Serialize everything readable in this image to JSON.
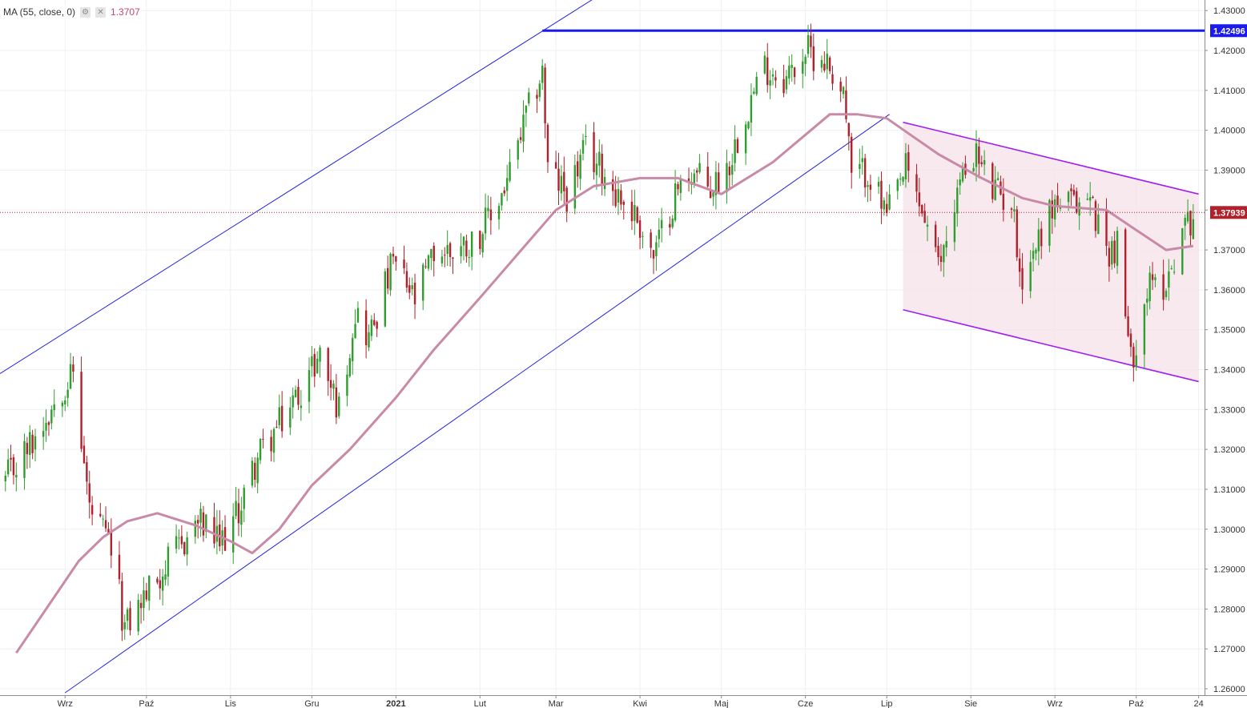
{
  "legend": {
    "indicator": "MA (55, close, 0)",
    "value": "1.3707"
  },
  "icons": {
    "settings": "gear-icon",
    "close": "close-icon"
  },
  "price_axis": {
    "labels": [
      "1.26000",
      "1.27000",
      "1.28000",
      "1.29000",
      "1.30000",
      "1.31000",
      "1.32000",
      "1.33000",
      "1.34000",
      "1.35000",
      "1.36000",
      "1.37000",
      "1.38000",
      "1.39000",
      "1.40000",
      "1.41000",
      "1.42000",
      "1.43000"
    ],
    "resistance_badge": "1.42496",
    "last_price_badge": "1.37939"
  },
  "time_axis": {
    "labels": [
      "Wrz",
      "Paź",
      "Lis",
      "Gru",
      "2021",
      "Lut",
      "Mar",
      "Kwi",
      "Maj",
      "Cze",
      "Lip",
      "Sie",
      "Wrz",
      "Paź",
      "24"
    ]
  },
  "colors": {
    "up": "#2f9e2f",
    "down": "#b0212b",
    "ma": "#c88aa6",
    "channel": "#2323e0",
    "resistance": "#1a1aee",
    "falling_channel": "#a020f0",
    "falling_fill": "#f5e1ea",
    "last_price": "#b0212b",
    "grid": "#eef0f3"
  },
  "chart_data": {
    "type": "candlestick",
    "series_ma": "MA (55, close, 0)",
    "ylim": [
      1.2575,
      1.4325
    ],
    "y_ticks": [
      1.26,
      1.27,
      1.28,
      1.29,
      1.3,
      1.31,
      1.32,
      1.33,
      1.34,
      1.35,
      1.36,
      1.37,
      1.38,
      1.39,
      1.4,
      1.41,
      1.42,
      1.43
    ],
    "x_range": [
      "2020-08-08",
      "2021-10-25"
    ],
    "x_ticks": [
      "2020-09-01",
      "2020-10-01",
      "2020-11-01",
      "2020-12-01",
      "2021-01-01",
      "2021-02-01",
      "2021-03-01",
      "2021-04-01",
      "2021-05-01",
      "2021-06-01",
      "2021-07-01",
      "2021-08-01",
      "2021-09-01",
      "2021-10-01",
      "2021-10-24"
    ],
    "close_path": [
      [
        "2020-08-10",
        1.312
      ],
      [
        "2020-08-20",
        1.322
      ],
      [
        "2020-08-31",
        1.336
      ],
      [
        "2020-09-04",
        1.339
      ],
      [
        "2020-09-10",
        1.305
      ],
      [
        "2020-09-18",
        1.295
      ],
      [
        "2020-09-23",
        1.275
      ],
      [
        "2020-10-01",
        1.284
      ],
      [
        "2020-10-12",
        1.294
      ],
      [
        "2020-10-20",
        1.302
      ],
      [
        "2020-10-28",
        1.296
      ],
      [
        "2020-11-03",
        1.303
      ],
      [
        "2020-11-11",
        1.318
      ],
      [
        "2020-11-18",
        1.325
      ],
      [
        "2020-11-25",
        1.333
      ],
      [
        "2020-12-04",
        1.344
      ],
      [
        "2020-12-11",
        1.33
      ],
      [
        "2020-12-17",
        1.355
      ],
      [
        "2020-12-22",
        1.348
      ],
      [
        "2020-12-31",
        1.367
      ],
      [
        "2021-01-08",
        1.357
      ],
      [
        "2021-01-15",
        1.369
      ],
      [
        "2021-01-22",
        1.37
      ],
      [
        "2021-01-29",
        1.372
      ],
      [
        "2021-02-05",
        1.378
      ],
      [
        "2021-02-12",
        1.389
      ],
      [
        "2021-02-18",
        1.403
      ],
      [
        "2021-02-24",
        1.415
      ],
      [
        "2021-02-26",
        1.39
      ],
      [
        "2021-03-05",
        1.384
      ],
      [
        "2021-03-12",
        1.395
      ],
      [
        "2021-03-18",
        1.39
      ],
      [
        "2021-03-26",
        1.382
      ],
      [
        "2021-03-31",
        1.378
      ],
      [
        "2021-04-06",
        1.368
      ],
      [
        "2021-04-14",
        1.384
      ],
      [
        "2021-04-20",
        1.39
      ],
      [
        "2021-04-27",
        1.385
      ],
      [
        "2021-05-04",
        1.392
      ],
      [
        "2021-05-10",
        1.405
      ],
      [
        "2021-05-17",
        1.416
      ],
      [
        "2021-05-25",
        1.413
      ],
      [
        "2021-06-01",
        1.42
      ],
      [
        "2021-06-08",
        1.418
      ],
      [
        "2021-06-15",
        1.41
      ],
      [
        "2021-06-18",
        1.388
      ],
      [
        "2021-06-24",
        1.39
      ],
      [
        "2021-07-01",
        1.378
      ],
      [
        "2021-07-08",
        1.39
      ],
      [
        "2021-07-15",
        1.378
      ],
      [
        "2021-07-20",
        1.365
      ],
      [
        "2021-07-27",
        1.385
      ],
      [
        "2021-08-02",
        1.395
      ],
      [
        "2021-08-09",
        1.385
      ],
      [
        "2021-08-16",
        1.382
      ],
      [
        "2021-08-20",
        1.362
      ],
      [
        "2021-08-27",
        1.375
      ],
      [
        "2021-09-01",
        1.382
      ],
      [
        "2021-09-08",
        1.381
      ],
      [
        "2021-09-14",
        1.383
      ],
      [
        "2021-09-20",
        1.37
      ],
      [
        "2021-09-24",
        1.371
      ],
      [
        "2021-09-29",
        1.342
      ],
      [
        "2021-10-05",
        1.36
      ],
      [
        "2021-10-12",
        1.362
      ],
      [
        "2021-10-18",
        1.375
      ],
      [
        "2021-10-22",
        1.379
      ]
    ],
    "ma55_path": [
      [
        "2020-08-14",
        1.269
      ],
      [
        "2020-08-25",
        1.28
      ],
      [
        "2020-09-06",
        1.292
      ],
      [
        "2020-09-15",
        1.298
      ],
      [
        "2020-09-24",
        1.302
      ],
      [
        "2020-10-05",
        1.304
      ],
      [
        "2020-10-19",
        1.301
      ],
      [
        "2020-11-01",
        1.297
      ],
      [
        "2020-11-09",
        1.294
      ],
      [
        "2020-11-19",
        1.3
      ],
      [
        "2020-12-01",
        1.311
      ],
      [
        "2020-12-15",
        1.32
      ],
      [
        "2021-01-01",
        1.333
      ],
      [
        "2021-01-15",
        1.345
      ],
      [
        "2021-02-01",
        1.358
      ],
      [
        "2021-02-15",
        1.369
      ],
      [
        "2021-03-01",
        1.38
      ],
      [
        "2021-03-15",
        1.386
      ],
      [
        "2021-04-01",
        1.388
      ],
      [
        "2021-04-15",
        1.388
      ],
      [
        "2021-05-01",
        1.384
      ],
      [
        "2021-05-20",
        1.392
      ],
      [
        "2021-06-10",
        1.404
      ],
      [
        "2021-06-20",
        1.404
      ],
      [
        "2021-07-01",
        1.403
      ],
      [
        "2021-07-20",
        1.394
      ],
      [
        "2021-08-05",
        1.388
      ],
      [
        "2021-08-20",
        1.383
      ],
      [
        "2021-09-01",
        1.381
      ],
      [
        "2021-09-20",
        1.38
      ],
      [
        "2021-10-01",
        1.375
      ],
      [
        "2021-10-12",
        1.37
      ],
      [
        "2021-10-22",
        1.371
      ]
    ],
    "annotations": {
      "rising_channel_lower": [
        [
          "2020-09-01",
          1.259
        ],
        [
          "2021-07-02",
          1.404
        ]
      ],
      "rising_channel_upper": [
        [
          "2020-08-08",
          1.339
        ],
        [
          "2021-03-15",
          1.433
        ]
      ],
      "resistance_level": {
        "value": 1.42496,
        "from": "2021-02-24"
      },
      "falling_channel_upper": [
        [
          "2021-07-07",
          1.402
        ],
        [
          "2021-10-24",
          1.384
        ]
      ],
      "falling_channel_lower": [
        [
          "2021-07-07",
          1.355
        ],
        [
          "2021-10-24",
          1.337
        ]
      ],
      "falling_zone_end": "2021-10-24",
      "last_price": 1.37939
    }
  }
}
